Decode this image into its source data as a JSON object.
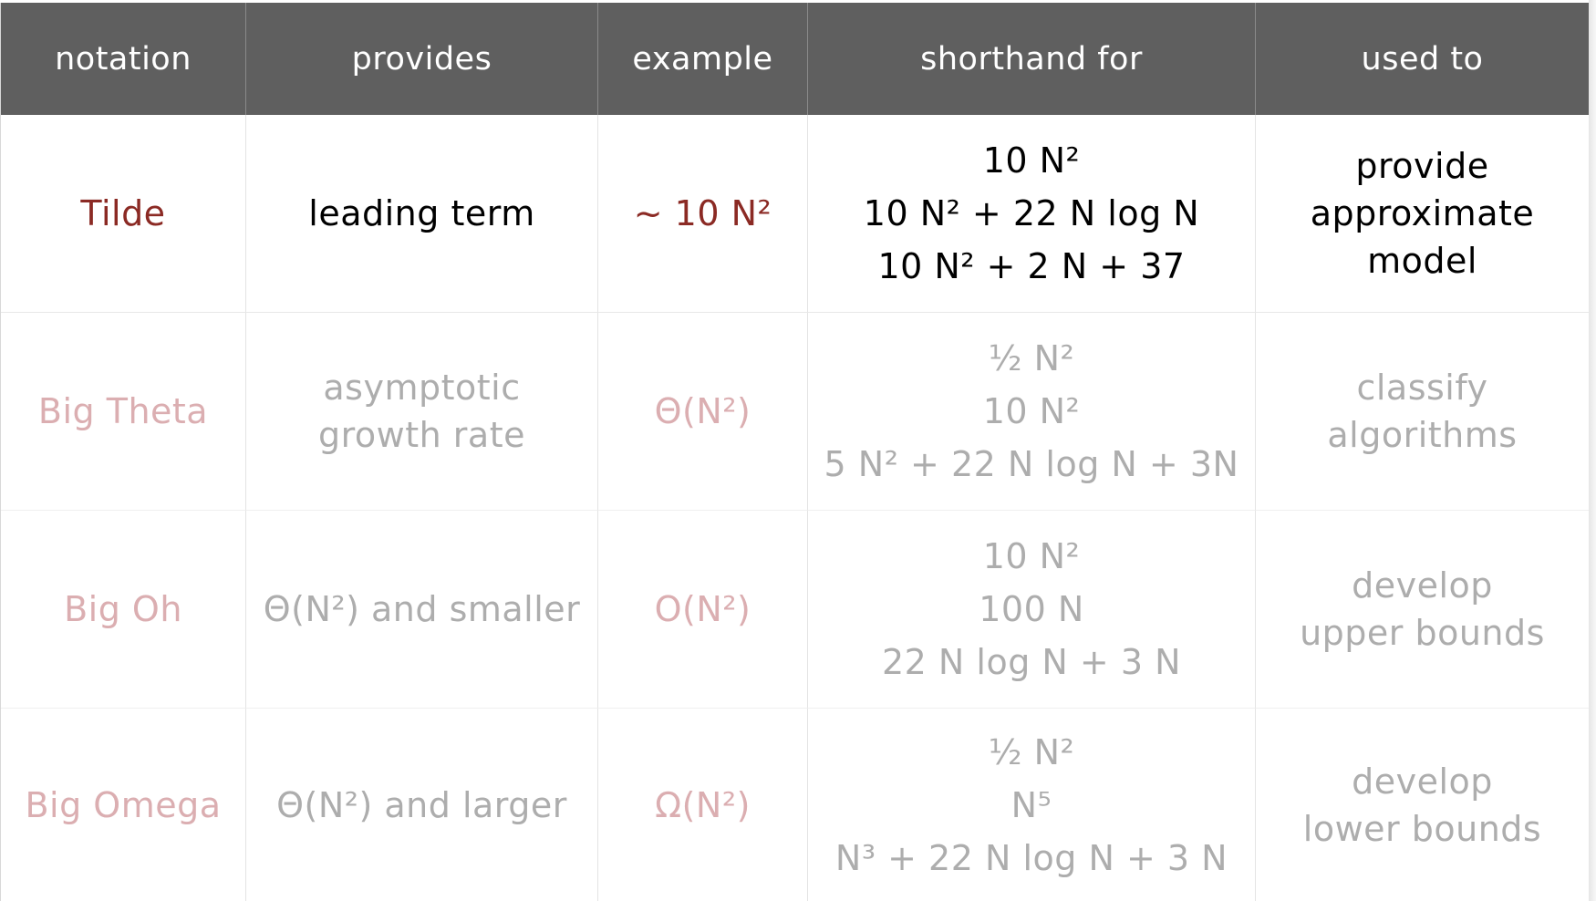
{
  "headers": [
    "notation",
    "provides",
    "example",
    "shorthand for",
    "used to"
  ],
  "rows": [
    {
      "notation": "Tilde",
      "provides": [
        "leading term"
      ],
      "example": "~ 10 N²",
      "shorthand": [
        "10 N²",
        "10 N² + 22 N log N",
        "10 N² + 2 N + 37"
      ],
      "used_to": [
        "provide",
        "approximate",
        "model"
      ]
    },
    {
      "notation": "Big Theta",
      "provides": [
        "asymptotic",
        "growth rate"
      ],
      "example": "Θ(N²)",
      "shorthand": [
        "½ N²",
        "10 N²",
        "5 N² + 22 N log N + 3N"
      ],
      "used_to": [
        "classify",
        "algorithms"
      ]
    },
    {
      "notation": "Big Oh",
      "provides": [
        "Θ(N²) and smaller"
      ],
      "example": "O(N²)",
      "shorthand": [
        "10 N²",
        "100 N",
        "22 N log N + 3 N"
      ],
      "used_to": [
        "develop",
        "upper bounds"
      ]
    },
    {
      "notation": "Big Omega",
      "provides": [
        "Θ(N²) and larger"
      ],
      "example": "Ω(N²)",
      "shorthand": [
        "½ N²",
        "N⁵",
        "N³ + 22 N log N + 3 N"
      ],
      "used_to": [
        "develop",
        "lower bounds"
      ]
    }
  ],
  "colors": {
    "header_bg": "#5f5f5f",
    "accent_active": "#8b2a24",
    "accent_faded": "#dbaeb1",
    "text_faded": "#adadad"
  }
}
